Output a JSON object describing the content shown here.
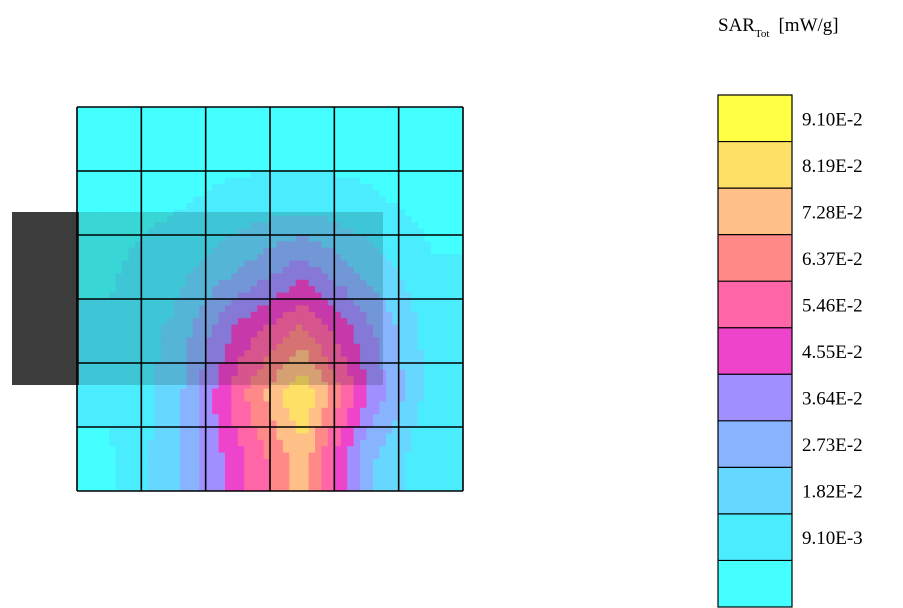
{
  "chart_data": {
    "type": "heatmap",
    "title": "",
    "quantity": {
      "symbol": "SAR",
      "subscript": "Tot",
      "unit": "[mW/g]"
    },
    "colorbar": {
      "ticks": [
        "9.10E-2",
        "8.19E-2",
        "7.28E-2",
        "6.37E-2",
        "5.46E-2",
        "4.55E-2",
        "3.64E-2",
        "2.73E-2",
        "1.82E-2",
        "9.10E-3"
      ],
      "tick_values": [
        0.091,
        0.0819,
        0.0728,
        0.0637,
        0.0546,
        0.0455,
        0.0364,
        0.0273,
        0.0182,
        0.0091
      ],
      "levels": [
        {
          "min": 0.091,
          "max": null,
          "color": "#ffff44"
        },
        {
          "min": 0.0819,
          "max": 0.091,
          "color": "#ffe066"
        },
        {
          "min": 0.0728,
          "max": 0.0819,
          "color": "#ffc088"
        },
        {
          "min": 0.0637,
          "max": 0.0728,
          "color": "#ff8888"
        },
        {
          "min": 0.0546,
          "max": 0.0637,
          "color": "#ff66a8"
        },
        {
          "min": 0.0455,
          "max": 0.0546,
          "color": "#ee44cc"
        },
        {
          "min": 0.0364,
          "max": 0.0455,
          "color": "#a090ff"
        },
        {
          "min": 0.0273,
          "max": 0.0364,
          "color": "#88b4ff"
        },
        {
          "min": 0.0182,
          "max": 0.0273,
          "color": "#66d8ff"
        },
        {
          "min": 0.0091,
          "max": 0.0182,
          "color": "#4cecff"
        },
        {
          "min": null,
          "max": 0.0091,
          "color": "#44ffff"
        }
      ]
    },
    "grid": {
      "cols": 6,
      "rows": 6,
      "lines": true
    },
    "sar_values": [
      [
        0.005,
        0.005,
        0.005,
        0.005,
        0.005,
        0.005
      ],
      [
        0.006,
        0.008,
        0.012,
        0.014,
        0.011,
        0.006
      ],
      [
        0.008,
        0.014,
        0.026,
        0.04,
        0.024,
        0.01
      ],
      [
        0.01,
        0.02,
        0.048,
        0.066,
        0.04,
        0.014
      ],
      [
        0.01,
        0.022,
        0.06,
        0.092,
        0.046,
        0.014
      ],
      [
        0.008,
        0.024,
        0.052,
        0.078,
        0.03,
        0.01
      ]
    ],
    "overlay": {
      "device_color": "#3c3c3c"
    }
  }
}
